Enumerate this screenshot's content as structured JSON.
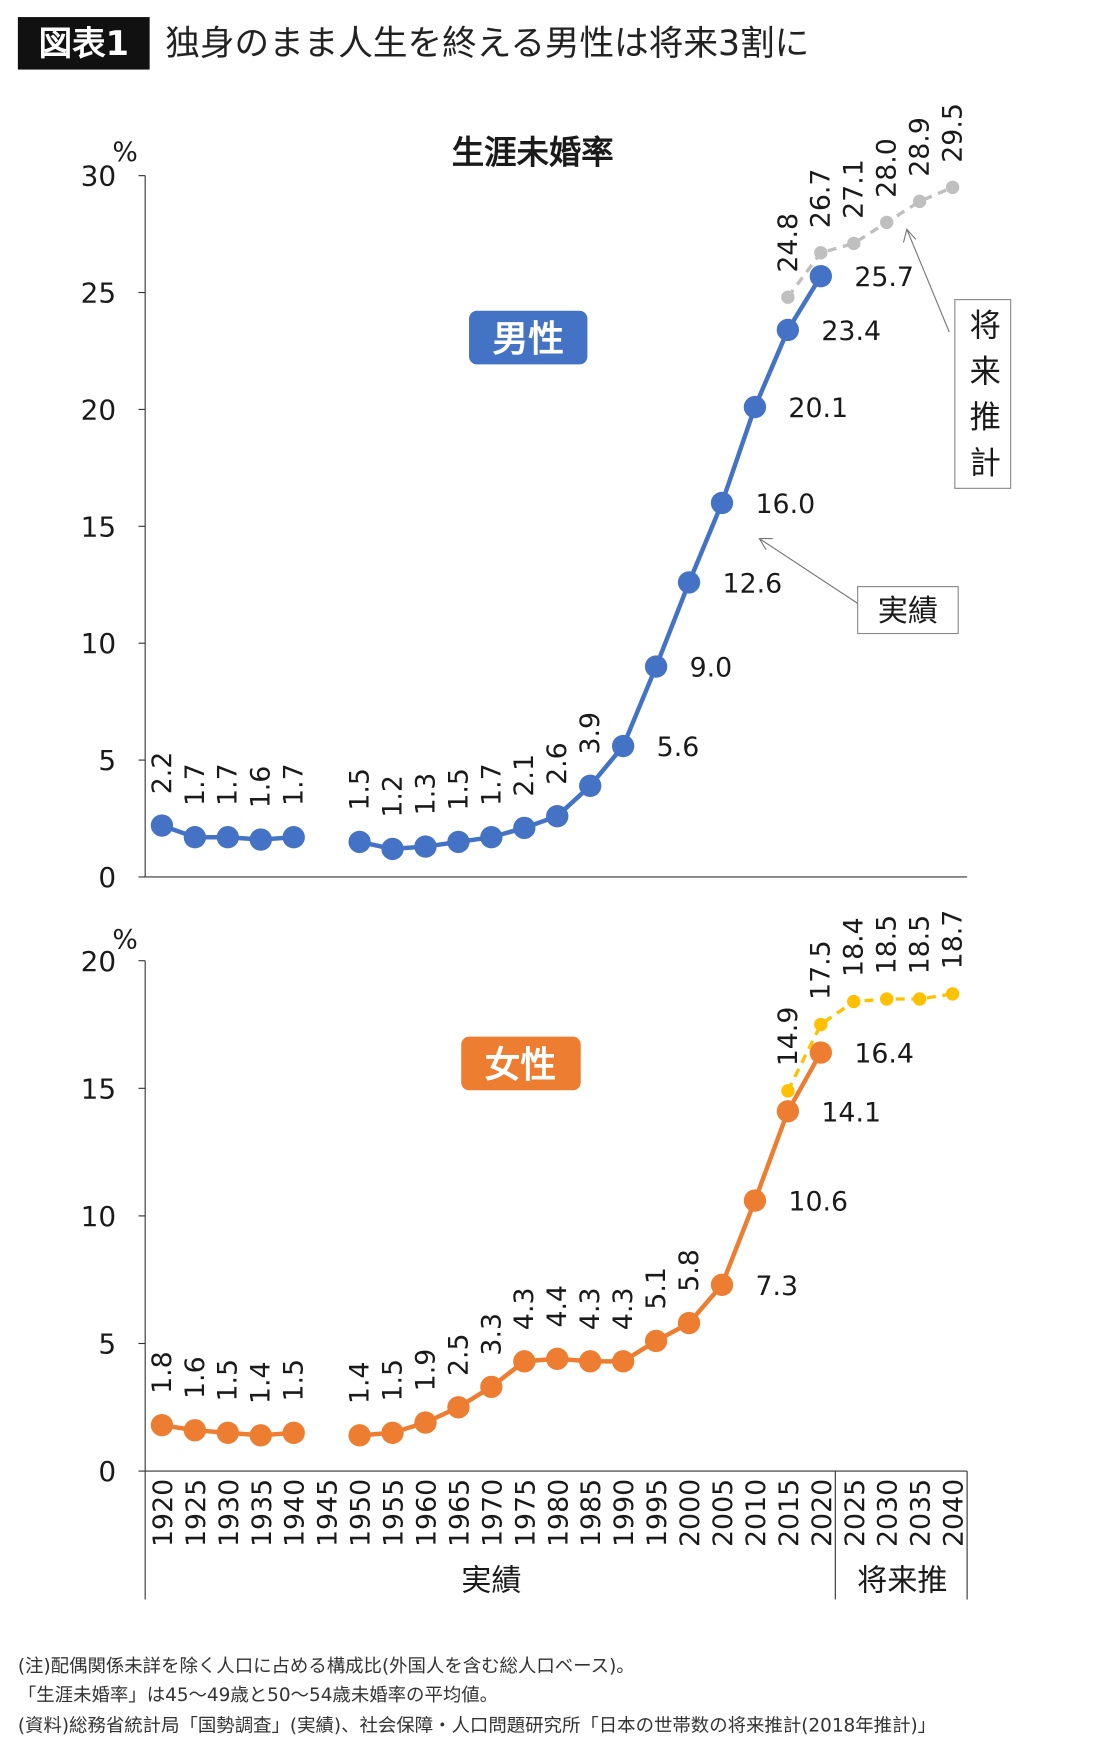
{
  "header": {
    "badge": "図表1",
    "title": "独身のまま人生を終える男性は将来3割に"
  },
  "chart_data": [
    {
      "type": "line",
      "title": "生涯未婚率",
      "panel_label": "男性",
      "ylabel": "%",
      "ylim": [
        0,
        30
      ],
      "yticks": [
        0,
        5,
        10,
        15,
        20,
        25,
        30
      ],
      "colors": {
        "actual": "#4472C4",
        "projection": "#BFBFBF"
      },
      "series": [
        {
          "kind": "actual",
          "x": [
            1920,
            1925,
            1930,
            1935,
            1940,
            1950,
            1955,
            1960,
            1965,
            1970,
            1975,
            1980,
            1985,
            1990,
            1995,
            2000,
            2005,
            2010,
            2015,
            2020
          ],
          "values": [
            2.2,
            1.7,
            1.7,
            1.6,
            1.7,
            1.5,
            1.2,
            1.3,
            1.5,
            1.7,
            2.1,
            2.6,
            3.9,
            5.6,
            9.0,
            12.6,
            16.0,
            20.1,
            23.4,
            25.7
          ]
        },
        {
          "kind": "projection",
          "x": [
            2015,
            2020,
            2025,
            2030,
            2035,
            2040
          ],
          "values": [
            24.8,
            26.7,
            27.1,
            28.0,
            28.9,
            29.5
          ]
        }
      ],
      "annotations": {
        "actual": "実績",
        "projection": "将来推計"
      }
    },
    {
      "type": "line",
      "panel_label": "女性",
      "ylabel": "%",
      "ylim": [
        0,
        20
      ],
      "yticks": [
        0,
        5,
        10,
        15,
        20
      ],
      "colors": {
        "actual": "#ED7D31",
        "projection": "#FFC000"
      },
      "series": [
        {
          "kind": "actual",
          "x": [
            1920,
            1925,
            1930,
            1935,
            1940,
            1950,
            1955,
            1960,
            1965,
            1970,
            1975,
            1980,
            1985,
            1990,
            1995,
            2000,
            2005,
            2010,
            2015,
            2020
          ],
          "values": [
            1.8,
            1.6,
            1.5,
            1.4,
            1.5,
            1.4,
            1.5,
            1.9,
            2.5,
            3.3,
            4.3,
            4.4,
            4.3,
            4.3,
            5.1,
            5.8,
            7.3,
            10.6,
            14.1,
            16.4
          ]
        },
        {
          "kind": "projection",
          "x": [
            2015,
            2020,
            2025,
            2030,
            2035,
            2040
          ],
          "values": [
            14.9,
            17.5,
            18.4,
            18.5,
            18.5,
            18.7
          ]
        }
      ],
      "xticks": [
        1920,
        1925,
        1930,
        1935,
        1940,
        1945,
        1950,
        1955,
        1960,
        1965,
        1970,
        1975,
        1980,
        1985,
        1990,
        1995,
        2000,
        2005,
        2010,
        2015,
        2020,
        2025,
        2030,
        2035,
        2040
      ],
      "xgroups": [
        "実績",
        "将来推"
      ]
    }
  ],
  "notes": [
    "(注)配偶関係未詳を除く人口に占める構成比(外国人を含む総人口ベース)。",
    "「生涯未婚率」は45〜49歳と50〜54歳未婚率の平均値。",
    "(資料)総務省統計局「国勢調査」(実績)、社会保障・人口問題研究所「日本の世帯数の将来推計(2018年推計)」"
  ]
}
